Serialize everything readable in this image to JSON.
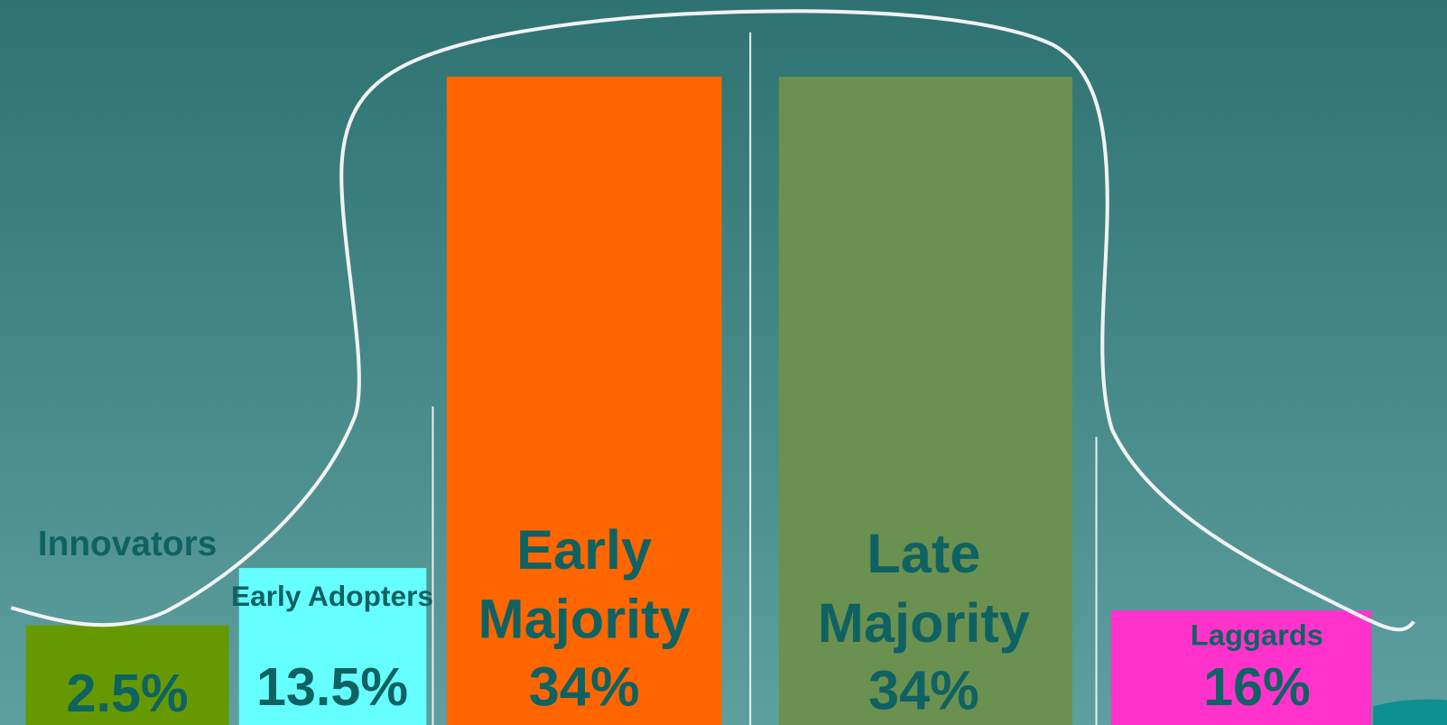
{
  "segments": [
    {
      "label_lines": [
        "Innovators"
      ],
      "share": "2.5%"
    },
    {
      "label_lines": [
        "Early Adopters"
      ],
      "share": "13.5%"
    },
    {
      "label_lines": [
        "Early",
        "Majority"
      ],
      "share": "34%"
    },
    {
      "label_lines": [
        "Late",
        "Majority"
      ],
      "share": "34%"
    },
    {
      "label_lines": [
        "Laggards"
      ],
      "share": "16%"
    }
  ]
}
